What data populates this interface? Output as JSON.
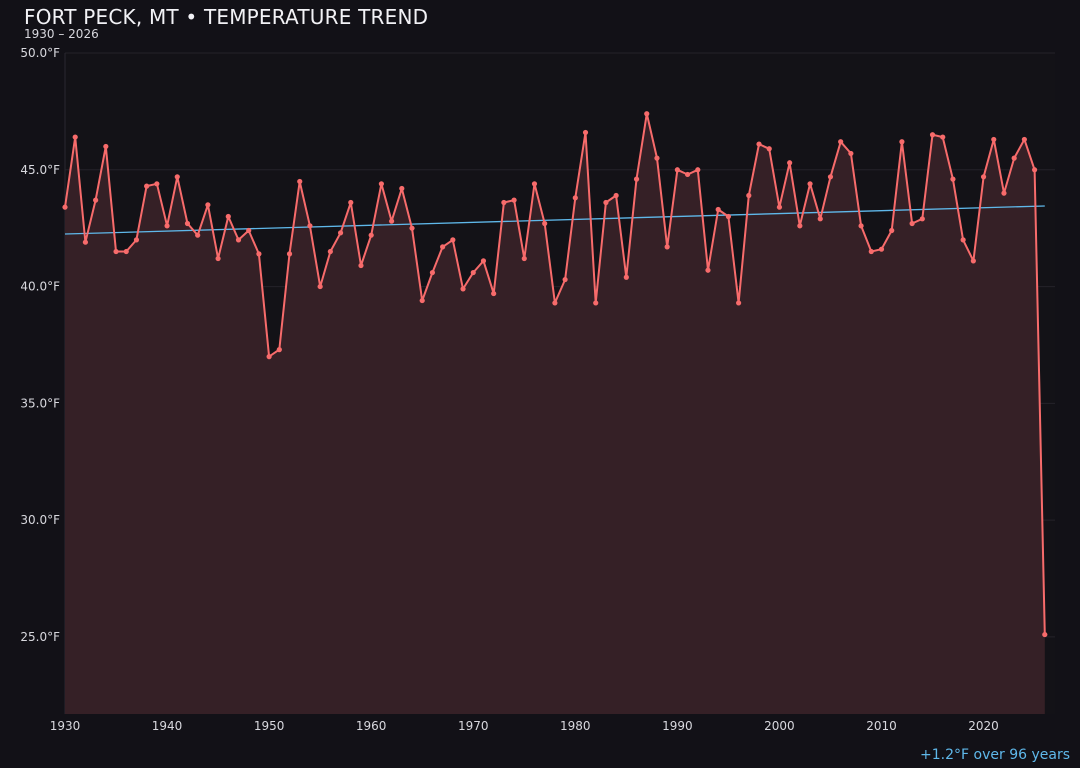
{
  "chart_data": {
    "type": "line",
    "title": "FORT PECK, MT • TEMPERATURE TREND",
    "subtitle": "1930 – 2026",
    "xlabel": "",
    "ylabel": "",
    "xlim": [
      1930,
      2027
    ],
    "ylim": [
      21.7,
      50
    ],
    "grid": true,
    "x_ticks": [
      "1930",
      "1940",
      "1950",
      "1960",
      "1970",
      "1980",
      "1990",
      "2000",
      "2010",
      "2020"
    ],
    "y_ticks": [
      "25.0°F",
      "30.0°F",
      "35.0°F",
      "40.0°F",
      "45.0°F",
      "50.0°F"
    ],
    "y_tick_values": [
      25,
      30,
      35,
      40,
      45,
      50
    ],
    "x_tick_values": [
      1930,
      1940,
      1950,
      1960,
      1970,
      1980,
      1990,
      2000,
      2010,
      2020
    ],
    "series": [
      {
        "x": [
          1930,
          1931,
          1932,
          1933,
          1934,
          1935,
          1936,
          1937,
          1938,
          1939,
          1940,
          1941,
          1942,
          1943,
          1944,
          1945,
          1946,
          1947,
          1948,
          1949,
          1950,
          1951,
          1952,
          1953,
          1954,
          1955,
          1956,
          1957,
          1958,
          1959,
          1960,
          1961,
          1962,
          1963,
          1964,
          1965,
          1966,
          1967,
          1968,
          1969,
          1970,
          1971,
          1972,
          1973,
          1974,
          1975,
          1976,
          1977,
          1978,
          1979,
          1980,
          1981,
          1982,
          1983,
          1984,
          1985,
          1986,
          1987,
          1988,
          1989,
          1990,
          1991,
          1992,
          1993,
          1994,
          1995,
          1996,
          1997,
          1998,
          1999,
          2000,
          2001,
          2002,
          2003,
          2004,
          2005,
          2006,
          2007,
          2008,
          2009,
          2010,
          2011,
          2012,
          2013,
          2014,
          2015,
          2016,
          2017,
          2018,
          2019,
          2020,
          2021,
          2022,
          2023,
          2024,
          2025,
          2026
        ],
        "values": [
          43.4,
          46.4,
          41.9,
          43.7,
          46.0,
          41.5,
          41.5,
          42.0,
          44.3,
          44.4,
          42.6,
          44.7,
          42.7,
          42.2,
          43.5,
          41.2,
          43.0,
          42.0,
          42.4,
          41.4,
          37.0,
          37.3,
          41.4,
          44.5,
          42.6,
          40.0,
          41.5,
          42.3,
          43.6,
          40.9,
          42.2,
          44.4,
          42.8,
          44.2,
          42.5,
          39.4,
          40.6,
          41.7,
          42.0,
          39.9,
          40.6,
          41.1,
          39.7,
          43.6,
          43.7,
          41.2,
          44.4,
          42.7,
          39.3,
          40.3,
          43.8,
          46.6,
          39.3,
          43.6,
          43.9,
          40.4,
          44.6,
          47.4,
          45.5,
          41.7,
          45.0,
          44.8,
          45.0,
          40.7,
          43.3,
          43.0,
          39.3,
          43.9,
          46.1,
          45.9,
          43.4,
          45.3,
          42.6,
          44.4,
          42.9,
          44.7,
          46.2,
          45.7,
          42.6,
          41.5,
          41.6,
          42.4,
          46.2,
          42.7,
          42.9,
          46.5,
          46.4,
          44.6,
          42.0,
          41.1,
          44.7,
          46.3,
          44.0,
          45.5,
          46.3,
          45.0,
          25.1
        ],
        "color": "#f76b6b"
      }
    ],
    "trend": {
      "x": [
        1930,
        2026
      ],
      "values": [
        42.25,
        43.45
      ],
      "color": "#5fb8ea"
    },
    "annotation": "+1.2°F over 96 years",
    "colors": {
      "background": "#121117",
      "plot_background": "#131217",
      "fill": "#352026",
      "line": "#f76b6b",
      "trend": "#5fb8ea"
    }
  }
}
